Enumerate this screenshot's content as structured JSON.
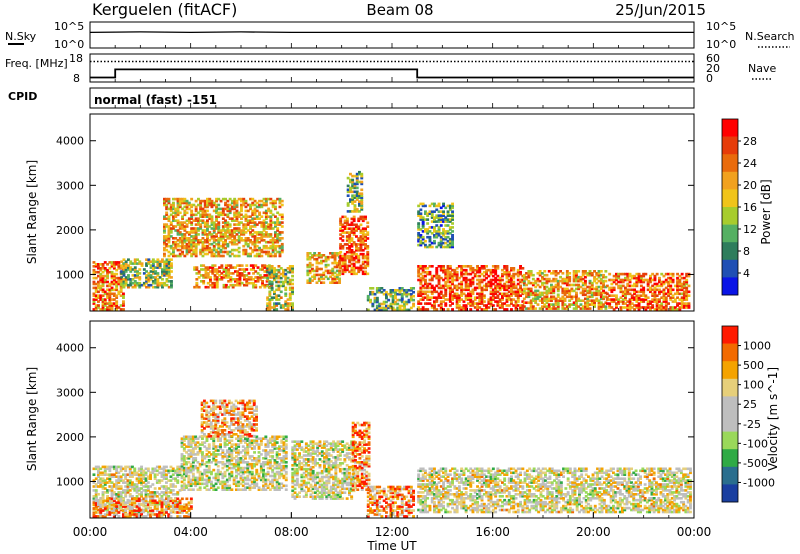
{
  "header": {
    "station": "Kerguelen (fitACF)",
    "beam": "Beam 08",
    "date": "25/Jun/2015"
  },
  "chart_data": [
    {
      "type": "line",
      "panel": "noise",
      "left_label": "N.Sky",
      "right_label": "N.Search",
      "yticks_left": [
        "10^5",
        "10^0"
      ],
      "yticks_right": [
        "10^5",
        "10^0"
      ],
      "series": [
        {
          "name": "N.Sky",
          "style": "solid",
          "x": [
            0,
            2,
            4,
            6,
            8,
            10,
            12,
            14,
            16,
            18,
            20,
            22,
            24
          ],
          "y": [
            3.0,
            3.1,
            3.0,
            3.1,
            3.0,
            3.0,
            3.0,
            3.0,
            3.0,
            3.0,
            3.0,
            3.0,
            3.0
          ]
        }
      ]
    },
    {
      "type": "line",
      "panel": "freq_nave",
      "left_label": "Freq. [MHz]",
      "right_label": "Nave",
      "ylim_left": [
        8,
        18
      ],
      "ylim_right": [
        0,
        60
      ],
      "yticks_left": [
        "18",
        "8"
      ],
      "yticks_right": [
        "60",
        "20",
        "0"
      ],
      "series": [
        {
          "name": "Freq.",
          "style": "solid",
          "x": [
            0,
            1,
            1,
            13,
            13,
            24
          ],
          "y": [
            9.6,
            9.6,
            12.5,
            12.5,
            9.6,
            9.6
          ]
        },
        {
          "name": "Nave",
          "style": "dotted",
          "x": [
            0,
            24
          ],
          "y": [
            44,
            44
          ]
        }
      ]
    },
    {
      "type": "heatmap",
      "panel": "cpid",
      "label": "CPID",
      "text": "normal (fast) -151"
    },
    {
      "type": "heatmap",
      "panel": "power",
      "ylabel": "Slant Range [km]",
      "ylim": [
        180,
        4600
      ],
      "yticks": [
        1000,
        2000,
        3000,
        4000
      ],
      "colorbar_label": "Power [dB]",
      "colorbar_ticks": [
        "28",
        "24",
        "20",
        "16",
        "12",
        "8",
        "4"
      ],
      "colors": [
        "#0a14e6",
        "#1f4fb4",
        "#2e7d5c",
        "#55b062",
        "#a7cc2d",
        "#f0c41a",
        "#f1a11e",
        "#e96b0c",
        "#e63c0a",
        "#ff0000"
      ],
      "scatter_regions": [
        {
          "t": [
            0.1,
            1.3
          ],
          "r": [
            200,
            1300
          ],
          "level": 0.72
        },
        {
          "t": [
            1.2,
            3.2
          ],
          "r": [
            700,
            1350
          ],
          "level": 0.45
        },
        {
          "t": [
            2.9,
            7.6
          ],
          "r": [
            1400,
            2700
          ],
          "level": 0.62
        },
        {
          "t": [
            4.1,
            7.2
          ],
          "r": [
            700,
            1200
          ],
          "level": 0.72
        },
        {
          "t": [
            7.0,
            8.0
          ],
          "r": [
            200,
            1200
          ],
          "level": 0.46
        },
        {
          "t": [
            8.6,
            9.9
          ],
          "r": [
            800,
            1500
          ],
          "level": 0.62
        },
        {
          "t": [
            9.9,
            11.0
          ],
          "r": [
            1000,
            2300
          ],
          "level": 0.78
        },
        {
          "t": [
            11.0,
            12.8
          ],
          "r": [
            190,
            700
          ],
          "level": 0.38
        },
        {
          "t": [
            13.0,
            17.2
          ],
          "r": [
            200,
            1200
          ],
          "level": 0.82
        },
        {
          "t": [
            17.2,
            20.5
          ],
          "r": [
            220,
            1100
          ],
          "level": 0.64
        },
        {
          "t": [
            20.5,
            23.8
          ],
          "r": [
            200,
            1000
          ],
          "level": 0.74
        },
        {
          "t": [
            10.2,
            10.8
          ],
          "r": [
            2400,
            3300
          ],
          "level": 0.42
        },
        {
          "t": [
            13.0,
            14.4
          ],
          "r": [
            1600,
            2600
          ],
          "level": 0.32
        }
      ]
    },
    {
      "type": "heatmap",
      "panel": "velocity",
      "ylabel": "Slant Range [km]",
      "ylim": [
        180,
        4600
      ],
      "yticks": [
        1000,
        2000,
        3000,
        4000
      ],
      "colorbar_label": "Velocity [m s^-1]",
      "colorbar_ticks": [
        "1000",
        "500",
        "100",
        "25",
        "-25",
        "-100",
        "-500",
        "-1000"
      ],
      "colors": [
        "#ff1a00",
        "#f26a00",
        "#f4a300",
        "#e6cf7a",
        "#bebebe",
        "#bebebe",
        "#9ad85a",
        "#2faa45",
        "#2a6e8e",
        "#1a3fa0"
      ],
      "xlabel": "Time UT",
      "xticks": [
        "00:00",
        "04:00",
        "08:00",
        "12:00",
        "16:00",
        "20:00",
        "00:00"
      ],
      "scatter_regions": [
        {
          "t": [
            0.1,
            3.6
          ],
          "r": [
            300,
            1350
          ],
          "level": 0.45
        },
        {
          "t": [
            3.6,
            7.8
          ],
          "r": [
            800,
            2000
          ],
          "level": 0.48
        },
        {
          "t": [
            4.4,
            6.6
          ],
          "r": [
            2000,
            2800
          ],
          "level": 0.3
        },
        {
          "t": [
            8.0,
            10.5
          ],
          "r": [
            600,
            1900
          ],
          "level": 0.47
        },
        {
          "t": [
            10.4,
            11.1
          ],
          "r": [
            800,
            2300
          ],
          "level": 0.18
        },
        {
          "t": [
            11.0,
            12.8
          ],
          "r": [
            200,
            900
          ],
          "level": 0.22
        },
        {
          "t": [
            13.0,
            23.8
          ],
          "r": [
            300,
            1300
          ],
          "level": 0.46
        },
        {
          "t": [
            0.1,
            4.0
          ],
          "r": [
            200,
            600
          ],
          "level": 0.24
        }
      ]
    }
  ]
}
